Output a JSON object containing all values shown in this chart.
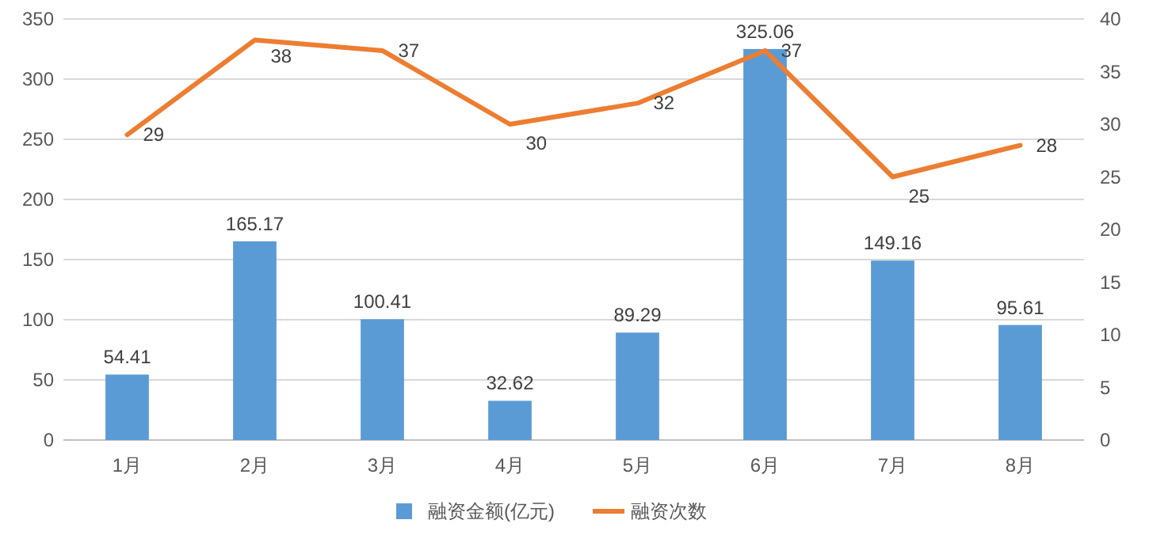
{
  "chart_data": {
    "type": "bar",
    "categories": [
      "1月",
      "2月",
      "3月",
      "4月",
      "5月",
      "6月",
      "7月",
      "8月"
    ],
    "series": [
      {
        "name": "融资金额(亿元)",
        "color": "#5b9bd5",
        "values": [
          54.41,
          165.17,
          100.41,
          32.62,
          89.29,
          325.06,
          149.16,
          95.61
        ]
      },
      {
        "name": "融资次数",
        "type": "line",
        "axis": "y2",
        "color": "#ed7d31",
        "values": [
          29,
          38,
          37,
          30,
          32,
          37,
          25,
          28
        ]
      }
    ],
    "ylim": [
      0,
      350
    ],
    "yticks": [
      0,
      50,
      100,
      150,
      200,
      250,
      300,
      350
    ],
    "y2lim": [
      0,
      40
    ],
    "y2ticks": [
      0,
      5,
      10,
      15,
      20,
      25,
      30,
      35,
      40
    ],
    "grid": "y",
    "legend": "bottom",
    "data_labels": true
  }
}
